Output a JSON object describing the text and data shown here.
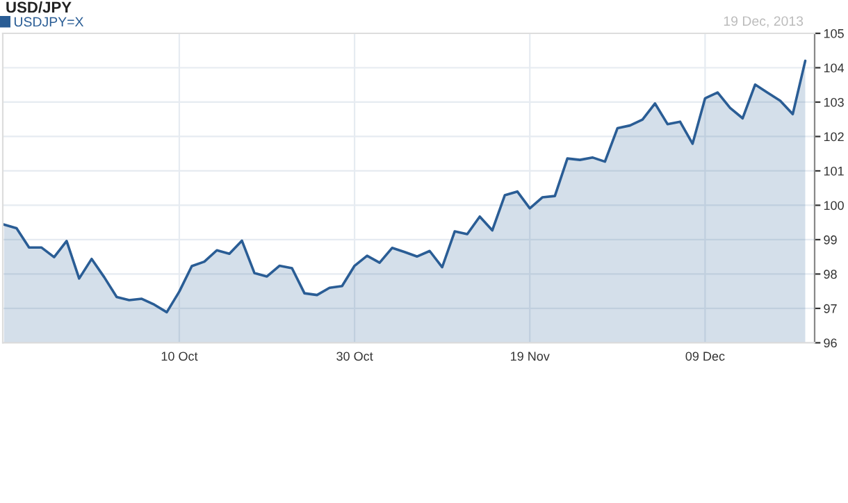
{
  "chart_data": {
    "type": "area",
    "title": "USD/JPY",
    "annotations": [
      "19 Dec, 2013"
    ],
    "categories": [
      null,
      null,
      null,
      null,
      null,
      null,
      null,
      null,
      null,
      null,
      null,
      null,
      null,
      null,
      "10 Oct",
      null,
      null,
      null,
      null,
      null,
      null,
      null,
      null,
      null,
      null,
      null,
      null,
      null,
      "30 Oct",
      null,
      null,
      null,
      null,
      null,
      null,
      null,
      null,
      null,
      null,
      null,
      null,
      null,
      "19 Nov",
      null,
      null,
      null,
      null,
      null,
      null,
      null,
      null,
      null,
      null,
      null,
      null,
      null,
      "09 Dec",
      null,
      null,
      null,
      null,
      null,
      null,
      null,
      null
    ],
    "series": [
      {
        "name": "USDJPY=X",
        "color": "#2a5d95",
        "values": [
          99.44,
          99.33,
          98.77,
          98.77,
          98.49,
          98.96,
          97.87,
          98.44,
          97.91,
          97.33,
          97.24,
          97.28,
          97.11,
          96.89,
          97.49,
          98.23,
          98.36,
          98.69,
          98.59,
          98.97,
          98.03,
          97.93,
          98.24,
          98.17,
          97.44,
          97.39,
          97.6,
          97.65,
          98.24,
          98.53,
          98.33,
          98.76,
          98.64,
          98.51,
          98.67,
          98.2,
          99.24,
          99.16,
          99.67,
          99.27,
          100.29,
          100.4,
          99.91,
          100.23,
          100.27,
          101.36,
          101.32,
          101.39,
          101.27,
          102.24,
          102.32,
          102.49,
          102.96,
          102.36,
          102.43,
          101.79,
          103.11,
          103.28,
          102.83,
          102.53,
          103.51,
          103.27,
          103.04,
          102.65,
          104.2
        ]
      }
    ],
    "ylim": [
      96,
      105
    ],
    "yticks": [
      96,
      97,
      98,
      99,
      100,
      101,
      102,
      103,
      104,
      105
    ],
    "grid": true,
    "legend": "top left"
  }
}
